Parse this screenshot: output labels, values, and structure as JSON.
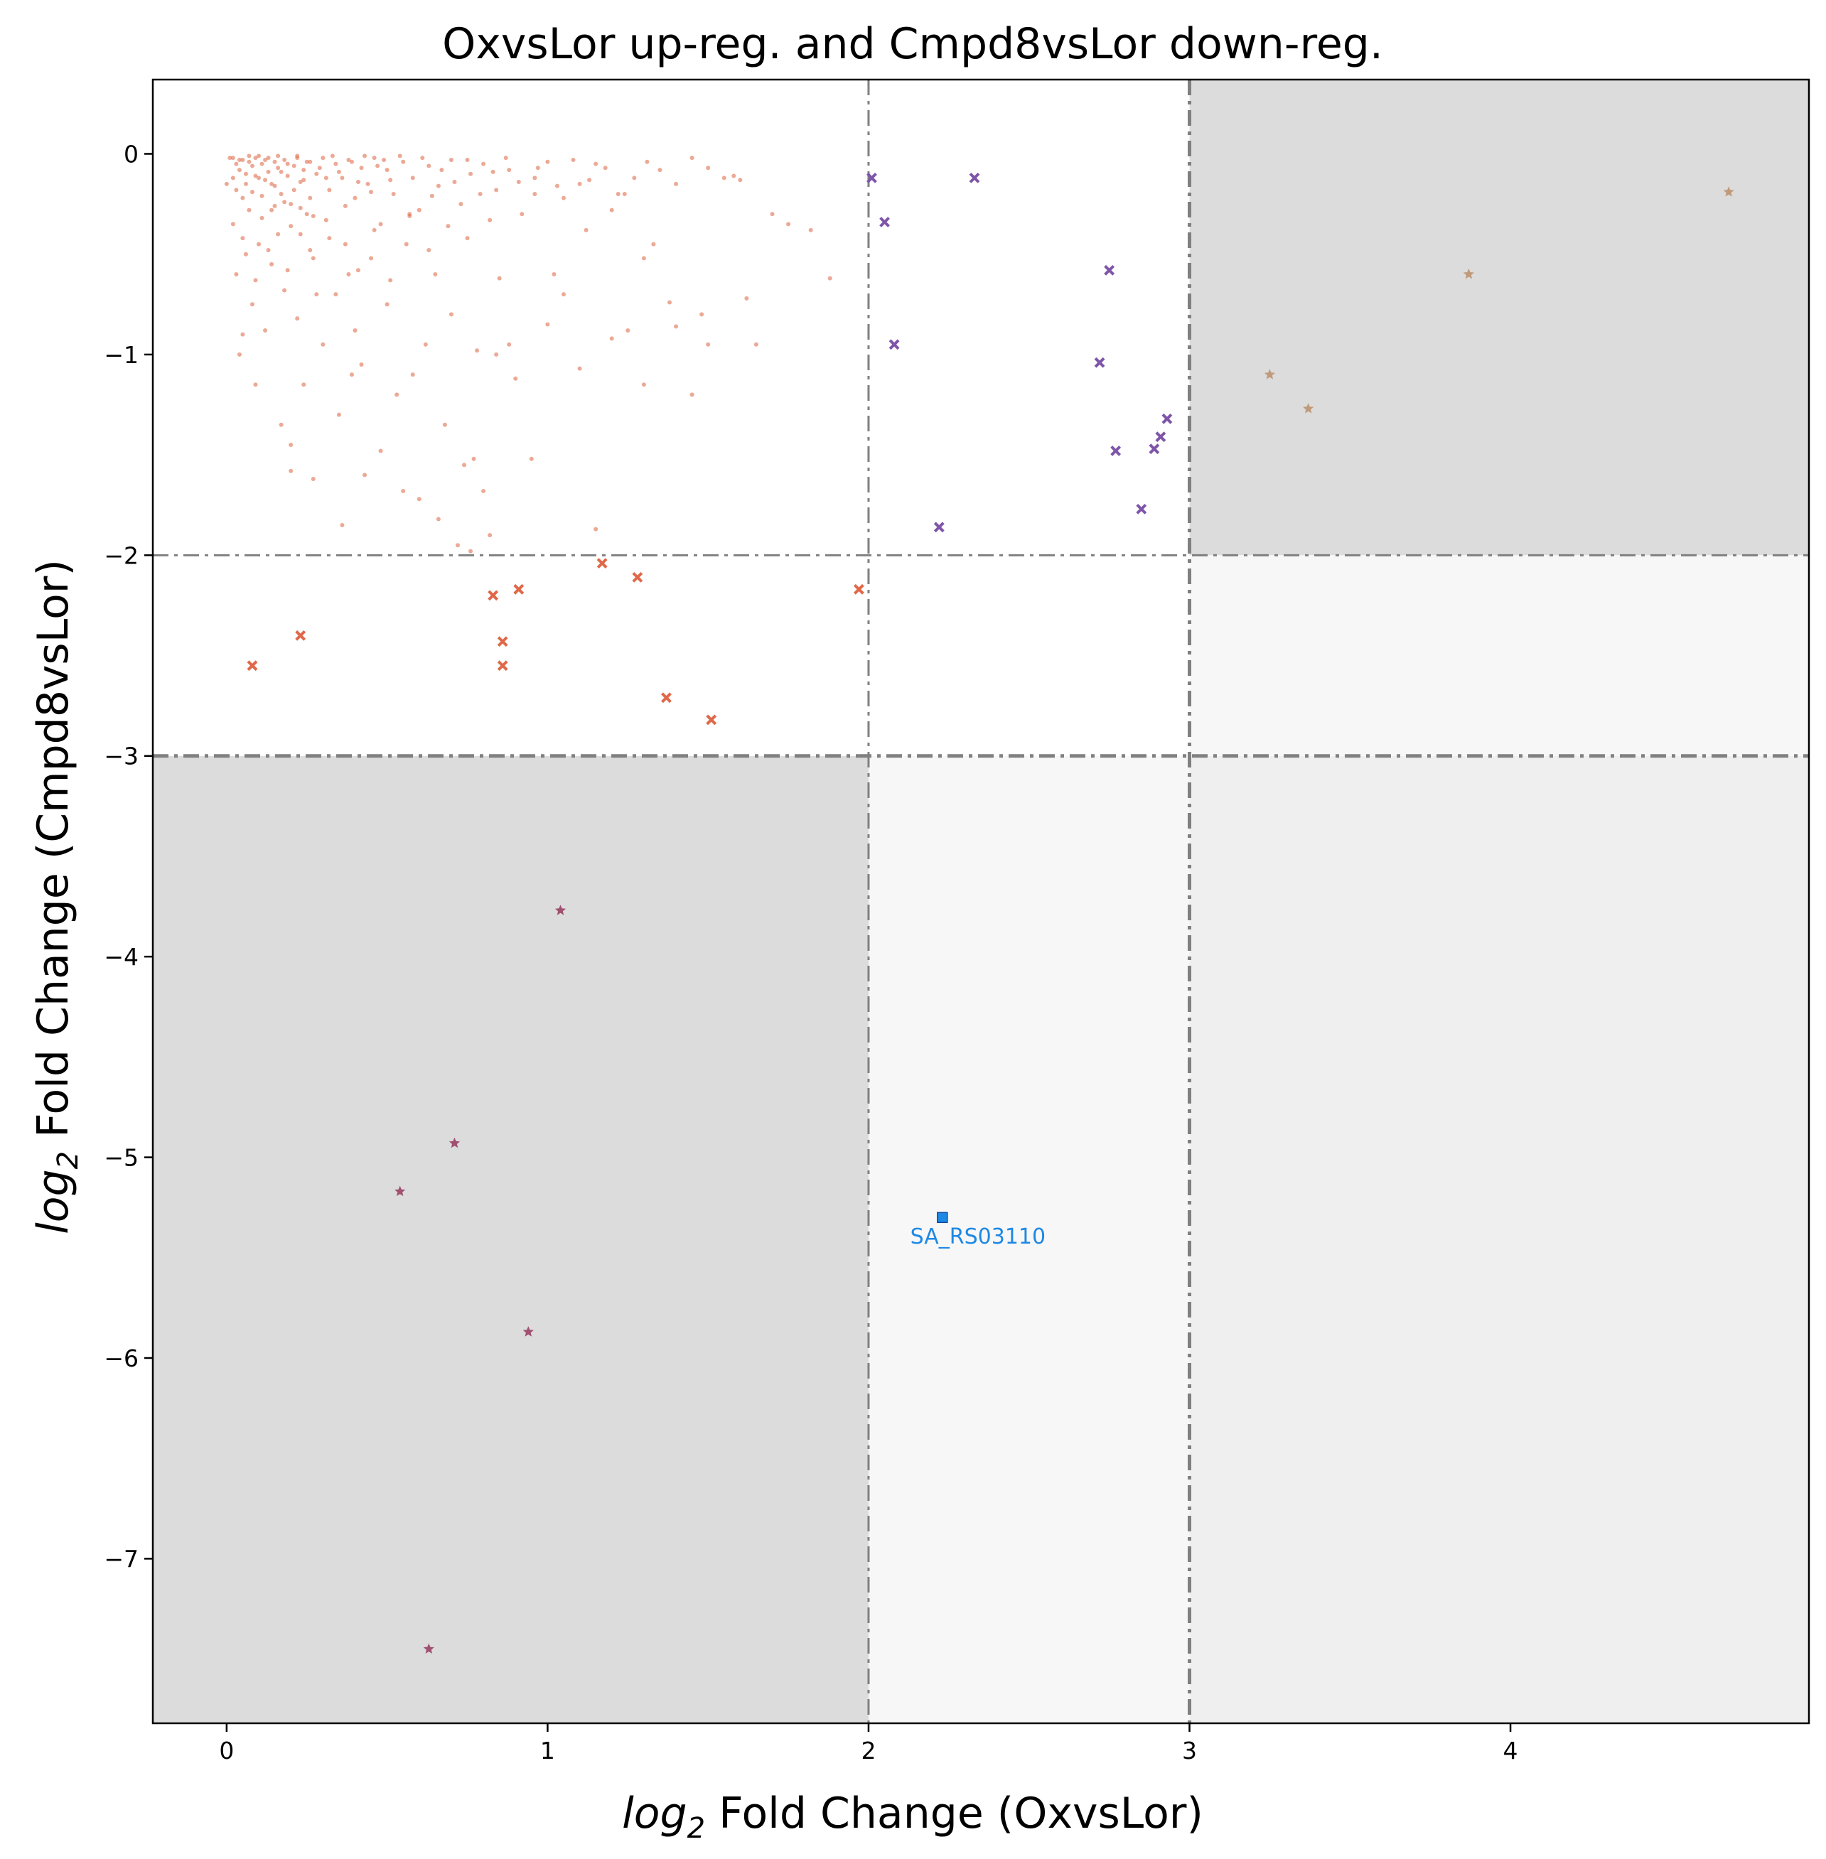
{
  "chart_data": {
    "type": "scatter",
    "title": "OxvsLor up-reg. and Cmpd8vsLor down-reg.",
    "xlabel": {
      "prefix": "log",
      "sub": "2",
      "rest": " Fold Change (OxvsLor)"
    },
    "ylabel": {
      "prefix": "log",
      "sub": "2",
      "rest": " Fold Change (Cmpd8vsLor)"
    },
    "xlim": [
      -0.23,
      4.93
    ],
    "ylim": [
      -7.82,
      0.37
    ],
    "xticks": [
      0,
      1,
      2,
      3,
      4
    ],
    "yticks": [
      0,
      -1,
      -2,
      -3,
      -4,
      -5,
      -6,
      -7
    ],
    "tick_labels_x": [
      "0",
      "1",
      "2",
      "3",
      "4"
    ],
    "tick_labels_y": [
      "0",
      "−1",
      "−2",
      "−3",
      "−4",
      "−5",
      "−6",
      "−7"
    ],
    "thresholds": {
      "x_inner": 2,
      "x_outer": 3,
      "y_inner": -2,
      "y_outer": -3
    },
    "regions": [
      {
        "x": [
          3,
          4.93
        ],
        "y": [
          -2,
          0.37
        ],
        "color": "#dcdcdc"
      },
      {
        "x": [
          -0.23,
          2
        ],
        "y": [
          -7.82,
          -3
        ],
        "color": "#dcdcdc"
      },
      {
        "x": [
          3,
          4.93
        ],
        "y": [
          -3,
          -2
        ],
        "color": "#f7f7f7"
      },
      {
        "x": [
          2,
          3
        ],
        "y": [
          -7.82,
          -3
        ],
        "color": "#f7f7f7"
      },
      {
        "x": [
          3,
          4.93
        ],
        "y": [
          -7.82,
          -3
        ],
        "color": "#efefef"
      }
    ],
    "grid": false,
    "series": [
      {
        "marker": "dot",
        "color": "#e07050",
        "points": [
          [
            0.02,
            -0.02
          ],
          [
            0.03,
            -0.05
          ],
          [
            0.04,
            -0.08
          ],
          [
            0.05,
            -0.03
          ],
          [
            0.06,
            -0.1
          ],
          [
            0.07,
            -0.04
          ],
          [
            0.08,
            -0.06
          ],
          [
            0.09,
            -0.02
          ],
          [
            0.1,
            -0.12
          ],
          [
            0.11,
            -0.05
          ],
          [
            0.12,
            -0.03
          ],
          [
            0.13,
            -0.09
          ],
          [
            0.14,
            -0.15
          ],
          [
            0.15,
            -0.04
          ],
          [
            0.16,
            -0.07
          ],
          [
            0.17,
            -0.2
          ],
          [
            0.18,
            -0.03
          ],
          [
            0.19,
            -0.11
          ],
          [
            0.2,
            -0.25
          ],
          [
            0.21,
            -0.06
          ],
          [
            0.22,
            -0.02
          ],
          [
            0.23,
            -0.14
          ],
          [
            0.24,
            -0.08
          ],
          [
            0.25,
            -0.3
          ],
          [
            0.26,
            -0.04
          ],
          [
            0.28,
            -0.1
          ],
          [
            0.3,
            -0.02
          ],
          [
            0.32,
            -0.18
          ],
          [
            0.34,
            -0.05
          ],
          [
            0.36,
            -0.12
          ],
          [
            0.38,
            -0.03
          ],
          [
            0.4,
            -0.22
          ],
          [
            0.42,
            -0.07
          ],
          [
            0.44,
            -0.15
          ],
          [
            0.46,
            -0.02
          ],
          [
            0.48,
            -0.35
          ],
          [
            0.5,
            -0.08
          ],
          [
            0.52,
            -0.2
          ],
          [
            0.55,
            -0.04
          ],
          [
            0.58,
            -0.12
          ],
          [
            0.6,
            -0.28
          ],
          [
            0.63,
            -0.06
          ],
          [
            0.66,
            -0.16
          ],
          [
            0.7,
            -0.03
          ],
          [
            0.73,
            -0.25
          ],
          [
            0.76,
            -0.1
          ],
          [
            0.8,
            -0.05
          ],
          [
            0.84,
            -0.18
          ],
          [
            0.88,
            -0.08
          ],
          [
            0.92,
            -0.3
          ],
          [
            0.96,
            -0.12
          ],
          [
            1.0,
            -0.04
          ],
          [
            1.05,
            -0.22
          ],
          [
            1.1,
            -0.15
          ],
          [
            1.15,
            -0.05
          ],
          [
            1.2,
            -0.28
          ],
          [
            1.27,
            -0.12
          ],
          [
            1.35,
            -0.08
          ],
          [
            1.45,
            -0.02
          ],
          [
            1.55,
            -0.12
          ],
          [
            1.6,
            -0.13
          ],
          [
            1.7,
            -0.3
          ],
          [
            1.75,
            -0.35
          ],
          [
            1.82,
            -0.38
          ],
          [
            1.88,
            -0.62
          ],
          [
            1.65,
            -0.95
          ],
          [
            1.62,
            -0.72
          ],
          [
            1.48,
            -0.8
          ],
          [
            1.4,
            -0.86
          ],
          [
            1.3,
            -0.52
          ],
          [
            0.02,
            -0.35
          ],
          [
            0.03,
            -0.6
          ],
          [
            0.05,
            -0.9
          ],
          [
            0.04,
            -1.0
          ],
          [
            0.06,
            -0.5
          ],
          [
            0.08,
            -0.75
          ],
          [
            0.1,
            -0.45
          ],
          [
            0.12,
            -0.88
          ],
          [
            0.14,
            -0.55
          ],
          [
            0.16,
            -0.4
          ],
          [
            0.18,
            -0.68
          ],
          [
            0.2,
            -0.36
          ],
          [
            0.22,
            -0.82
          ],
          [
            0.24,
            -1.15
          ],
          [
            0.26,
            -0.48
          ],
          [
            0.28,
            -0.7
          ],
          [
            0.3,
            -0.95
          ],
          [
            0.32,
            -0.42
          ],
          [
            0.35,
            -1.3
          ],
          [
            0.38,
            -0.6
          ],
          [
            0.4,
            -0.88
          ],
          [
            0.42,
            -1.05
          ],
          [
            0.45,
            -0.52
          ],
          [
            0.48,
            -1.48
          ],
          [
            0.5,
            -0.75
          ],
          [
            0.53,
            -1.2
          ],
          [
            0.56,
            -0.45
          ],
          [
            0.6,
            -1.72
          ],
          [
            0.62,
            -0.95
          ],
          [
            0.65,
            -0.6
          ],
          [
            0.68,
            -1.35
          ],
          [
            0.7,
            -0.8
          ],
          [
            0.74,
            -1.55
          ],
          [
            0.78,
            -0.98
          ],
          [
            0.8,
            -1.68
          ],
          [
            0.82,
            -1.9
          ],
          [
            0.85,
            -0.62
          ],
          [
            0.9,
            -1.12
          ],
          [
            0.95,
            -1.52
          ],
          [
            1.0,
            -0.85
          ],
          [
            1.05,
            -0.7
          ],
          [
            1.1,
            -1.07
          ],
          [
            1.15,
            -1.87
          ],
          [
            1.2,
            -0.92
          ],
          [
            1.25,
            -0.88
          ],
          [
            1.3,
            -1.15
          ],
          [
            1.38,
            -0.74
          ],
          [
            1.45,
            -1.2
          ],
          [
            1.5,
            -0.95
          ],
          [
            0.58,
            -1.1
          ],
          [
            0.36,
            -1.85
          ],
          [
            0.27,
            -1.62
          ],
          [
            0.2,
            -1.45
          ],
          [
            0.2,
            -1.58
          ],
          [
            0.17,
            -1.35
          ],
          [
            0.09,
            -1.15
          ],
          [
            0.72,
            -1.95
          ],
          [
            0.76,
            -1.98
          ],
          [
            0.77,
            -1.52
          ],
          [
            0.88,
            -0.95
          ],
          [
            0.66,
            -1.82
          ],
          [
            0.55,
            -1.68
          ],
          [
            0.43,
            -1.6
          ],
          [
            0.39,
            -1.1
          ],
          [
            0.84,
            -1.0
          ],
          [
            1.02,
            -0.6
          ],
          [
            1.12,
            -0.38
          ],
          [
            0.96,
            -0.2
          ],
          [
            1.22,
            -0.2
          ],
          [
            1.33,
            -0.45
          ],
          [
            0.0,
            -0.15
          ],
          [
            0.01,
            -0.02
          ],
          [
            0.02,
            -0.12
          ],
          [
            0.03,
            -0.18
          ],
          [
            0.04,
            -0.03
          ],
          [
            0.05,
            -0.22
          ],
          [
            0.06,
            -0.15
          ],
          [
            0.07,
            -0.01
          ],
          [
            0.08,
            -0.19
          ],
          [
            0.09,
            -0.11
          ],
          [
            0.1,
            -0.01
          ],
          [
            0.11,
            -0.21
          ],
          [
            0.12,
            -0.13
          ],
          [
            0.13,
            -0.02
          ],
          [
            0.14,
            -0.28
          ],
          [
            0.15,
            -0.16
          ],
          [
            0.16,
            -0.01
          ],
          [
            0.17,
            -0.09
          ],
          [
            0.18,
            -0.24
          ],
          [
            0.19,
            -0.05
          ],
          [
            0.21,
            -0.18
          ],
          [
            0.22,
            -0.01
          ],
          [
            0.23,
            -0.27
          ],
          [
            0.24,
            -0.13
          ],
          [
            0.25,
            -0.04
          ],
          [
            0.26,
            -0.22
          ],
          [
            0.27,
            -0.31
          ],
          [
            0.29,
            -0.07
          ],
          [
            0.31,
            -0.12
          ],
          [
            0.33,
            -0.01
          ],
          [
            0.35,
            -0.09
          ],
          [
            0.37,
            -0.26
          ],
          [
            0.39,
            -0.04
          ],
          [
            0.41,
            -0.14
          ],
          [
            0.43,
            -0.01
          ],
          [
            0.45,
            -0.19
          ],
          [
            0.47,
            -0.06
          ],
          [
            0.49,
            -0.03
          ],
          [
            0.51,
            -0.13
          ],
          [
            0.54,
            -0.01
          ],
          [
            0.57,
            -0.31
          ],
          [
            0.61,
            -0.02
          ],
          [
            0.64,
            -0.21
          ],
          [
            0.67,
            -0.08
          ],
          [
            0.71,
            -0.14
          ],
          [
            0.75,
            -0.03
          ],
          [
            0.79,
            -0.2
          ],
          [
            0.83,
            -0.09
          ],
          [
            0.87,
            -0.02
          ],
          [
            0.91,
            -0.14
          ],
          [
            0.97,
            -0.07
          ],
          [
            1.03,
            -0.16
          ],
          [
            1.08,
            -0.03
          ],
          [
            1.13,
            -0.13
          ],
          [
            1.18,
            -0.07
          ],
          [
            1.24,
            -0.2
          ],
          [
            1.31,
            -0.04
          ],
          [
            1.4,
            -0.15
          ],
          [
            1.5,
            -0.07
          ],
          [
            1.58,
            -0.11
          ],
          [
            0.05,
            -0.42
          ],
          [
            0.07,
            -0.28
          ],
          [
            0.09,
            -0.63
          ],
          [
            0.11,
            -0.32
          ],
          [
            0.13,
            -0.48
          ],
          [
            0.15,
            -0.26
          ],
          [
            0.19,
            -0.58
          ],
          [
            0.23,
            -0.4
          ],
          [
            0.27,
            -0.52
          ],
          [
            0.31,
            -0.33
          ],
          [
            0.34,
            -0.7
          ],
          [
            0.37,
            -0.45
          ],
          [
            0.41,
            -0.58
          ],
          [
            0.46,
            -0.38
          ],
          [
            0.51,
            -0.63
          ],
          [
            0.57,
            -0.3
          ],
          [
            0.63,
            -0.48
          ],
          [
            0.69,
            -0.36
          ],
          [
            0.75,
            -0.42
          ],
          [
            0.82,
            -0.33
          ]
        ]
      },
      {
        "marker": "x",
        "color": "#e06848",
        "points": [
          [
            0.08,
            -2.55
          ],
          [
            0.23,
            -2.4
          ],
          [
            0.83,
            -2.2
          ],
          [
            0.86,
            -2.43
          ],
          [
            0.86,
            -2.55
          ],
          [
            0.91,
            -2.17
          ],
          [
            1.17,
            -2.04
          ],
          [
            1.28,
            -2.11
          ],
          [
            1.37,
            -2.71
          ],
          [
            1.51,
            -2.82
          ],
          [
            1.97,
            -2.17
          ]
        ]
      },
      {
        "marker": "x",
        "color": "#7e55a8",
        "points": [
          [
            2.01,
            -0.12
          ],
          [
            2.05,
            -0.34
          ],
          [
            2.08,
            -0.95
          ],
          [
            2.22,
            -1.86
          ],
          [
            2.33,
            -0.12
          ],
          [
            2.72,
            -1.04
          ],
          [
            2.75,
            -0.58
          ],
          [
            2.77,
            -1.48
          ],
          [
            2.85,
            -1.77
          ],
          [
            2.89,
            -1.47
          ],
          [
            2.91,
            -1.41
          ],
          [
            2.93,
            -1.32
          ]
        ]
      },
      {
        "marker": "star",
        "color": "#c09a7a",
        "points": [
          [
            3.25,
            -1.1
          ],
          [
            3.37,
            -1.27
          ],
          [
            3.87,
            -0.6
          ],
          [
            4.68,
            -0.19
          ]
        ]
      },
      {
        "marker": "star",
        "color": "#a05070",
        "points": [
          [
            0.54,
            -5.17
          ],
          [
            0.63,
            -7.45
          ],
          [
            0.71,
            -4.93
          ],
          [
            0.94,
            -5.87
          ],
          [
            1.04,
            -3.77
          ]
        ]
      },
      {
        "marker": "square",
        "color": "#1e88e5",
        "points": [
          [
            2.23,
            -5.3
          ]
        ]
      }
    ],
    "annotations": [
      {
        "text": "SA_RS03110",
        "x": 2.13,
        "y": -5.43,
        "color": "#1e88e5"
      }
    ]
  }
}
